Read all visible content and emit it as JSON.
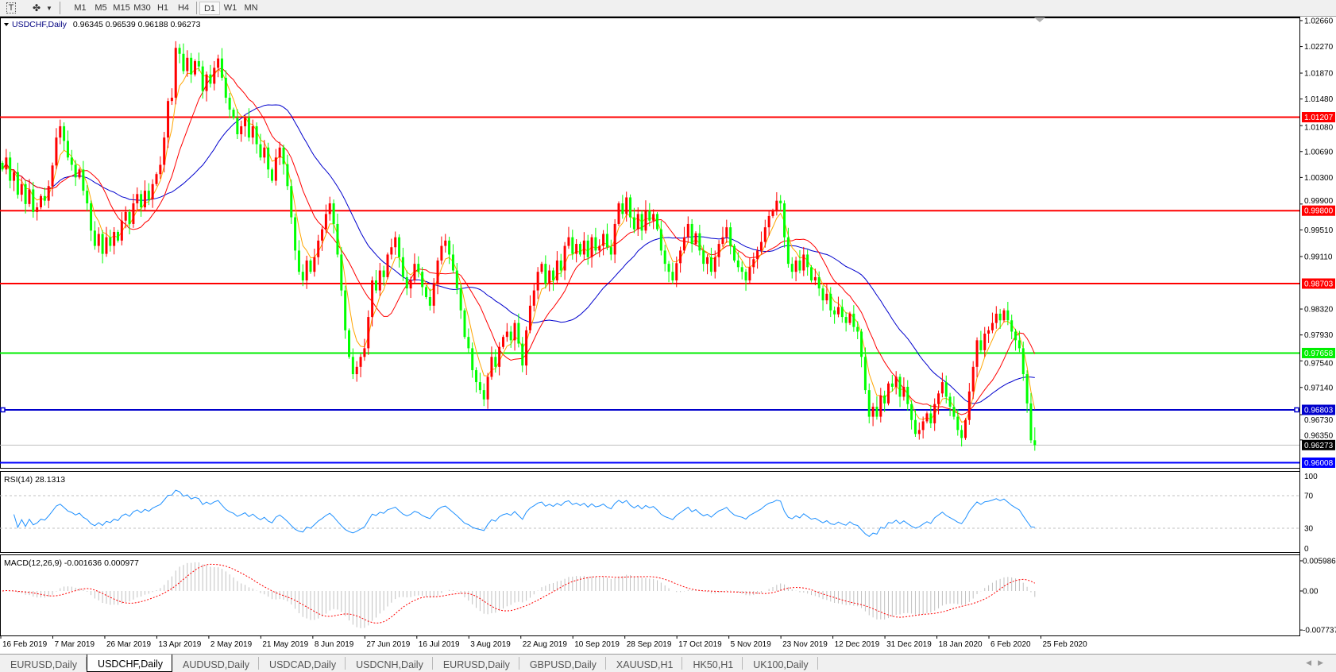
{
  "toolbar": {
    "icons": [
      "text-tool-icon",
      "shapes-tool-icon"
    ],
    "timeframes": [
      "M1",
      "M5",
      "M15",
      "M30",
      "H1",
      "H4",
      "D1",
      "W1",
      "MN"
    ],
    "active_timeframe": "D1"
  },
  "chart": {
    "title": "USDCHF,Daily",
    "ohlc": "0.96345 0.96539 0.96188 0.96273"
  },
  "chart_data": {
    "type": "candlestick",
    "symbol": "USDCHF",
    "timeframe": "Daily",
    "closes": [
      1.0042,
      1.006,
      1.0025,
      1.0038,
      1.0004,
      1.002,
      0.999,
      1.0012,
      0.9978,
      0.9985,
      1.0002,
      0.9995,
      1.0017,
      1.0048,
      1.009,
      1.0107,
      1.0085,
      1.006,
      1.0049,
      1.003,
      1.0042,
      1.001,
      0.9991,
      0.995,
      0.9927,
      0.9945,
      0.9915,
      0.994,
      0.9927,
      0.9948,
      0.9935,
      0.9965,
      0.9978,
      0.996,
      0.9991,
      1.0005,
      0.9985,
      1.001,
      0.9997,
      1.002,
      1.0035,
      1.0049,
      1.009,
      1.0145,
      1.015,
      1.0225,
      1.0216,
      1.019,
      1.021,
      1.0185,
      1.0205,
      1.0197,
      1.016,
      1.0185,
      1.0171,
      1.0195,
      1.0209,
      1.018,
      1.015,
      1.0132,
      1.012,
      1.0095,
      1.0107,
      1.012,
      1.009,
      1.0107,
      1.008,
      1.006,
      1.0075,
      1.0042,
      1.0025,
      1.006,
      1.0075,
      1.005,
      1.0017,
      0.997,
      0.992,
      0.9888,
      0.9875,
      0.9905,
      0.9888,
      0.991,
      0.9935,
      0.9952,
      0.9975,
      0.9991,
      0.996,
      0.9914,
      0.986,
      0.98,
      0.976,
      0.9734,
      0.9745,
      0.976,
      0.9773,
      0.982,
      0.9875,
      0.986,
      0.989,
      0.988,
      0.9914,
      0.9925,
      0.994,
      0.991,
      0.988,
      0.9863,
      0.9875,
      0.99,
      0.9888,
      0.9865,
      0.985,
      0.9837,
      0.987,
      0.9905,
      0.9927,
      0.9935,
      0.9914,
      0.989,
      0.9863,
      0.983,
      0.979,
      0.9773,
      0.974,
      0.9722,
      0.971,
      0.9696,
      0.973,
      0.976,
      0.9745,
      0.9775,
      0.979,
      0.9798,
      0.9785,
      0.9811,
      0.978,
      0.9747,
      0.98,
      0.9837,
      0.986,
      0.9888,
      0.99,
      0.987,
      0.989,
      0.9875,
      0.9905,
      0.989,
      0.9927,
      0.994,
      0.9915,
      0.993,
      0.9914,
      0.9935,
      0.991,
      0.994,
      0.992,
      0.9927,
      0.9945,
      0.9925,
      0.9914,
      0.996,
      0.9991,
      0.9975,
      1.0,
      0.997,
      0.9952,
      0.9975,
      0.995,
      0.998,
      0.9965,
      0.9975,
      0.9952,
      0.992,
      0.99,
      0.9888,
      0.9875,
      0.9901,
      0.992,
      0.994,
      0.996,
      0.993,
      0.9946,
      0.992,
      0.99,
      0.991,
      0.9888,
      0.991,
      0.993,
      0.994,
      0.9955,
      0.9927,
      0.9905,
      0.9895,
      0.9888,
      0.9875,
      0.9895,
      0.9907,
      0.992,
      0.9933,
      0.9955,
      0.9972,
      0.998,
      0.9995,
      0.9991,
      0.994,
      0.99,
      0.9888,
      0.9905,
      0.989,
      0.9914,
      0.9895,
      0.9875,
      0.988,
      0.9863,
      0.9845,
      0.9855,
      0.983,
      0.9824,
      0.9835,
      0.982,
      0.9811,
      0.9825,
      0.9805,
      0.9798,
      0.976,
      0.971,
      0.967,
      0.9685,
      0.967,
      0.9702,
      0.969,
      0.972,
      0.9715,
      0.973,
      0.97,
      0.9715,
      0.9689,
      0.9665,
      0.9644,
      0.965,
      0.9663,
      0.9675,
      0.966,
      0.9689,
      0.9705,
      0.9722,
      0.97,
      0.9685,
      0.967,
      0.965,
      0.9638,
      0.9665,
      0.9708,
      0.9745,
      0.9785,
      0.977,
      0.9795,
      0.98,
      0.9811,
      0.9825,
      0.9815,
      0.983,
      0.9815,
      0.9798,
      0.9785,
      0.9773,
      0.9734,
      0.969,
      0.96345,
      0.96273
    ],
    "last_bar": {
      "open": 0.96345,
      "high": 0.96539,
      "low": 0.96188,
      "close": 0.96273
    },
    "price_ticks": [
      "1.02660",
      "1.02270",
      "1.01870",
      "1.01480",
      "1.01080",
      "1.00690",
      "1.00300",
      "0.99900",
      "0.99510",
      "0.99110",
      "0.98320",
      "0.97930",
      "0.97540",
      "0.97140",
      "0.96730",
      "0.96350"
    ],
    "date_labels": [
      "16 Feb 2019",
      "7 Mar 2019",
      "26 Mar 2019",
      "13 Apr 2019",
      "2 May 2019",
      "21 May 2019",
      "8 Jun 2019",
      "27 Jun 2019",
      "16 Jul 2019",
      "3 Aug 2019",
      "22 Aug 2019",
      "10 Sep 2019",
      "28 Sep 2019",
      "17 Oct 2019",
      "5 Nov 2019",
      "23 Nov 2019",
      "12 Dec 2019",
      "31 Dec 2019",
      "18 Jan 2020",
      "6 Feb 2020",
      "25 Feb 2020"
    ],
    "horizontal_lines": [
      {
        "label": "1.01207",
        "price": 1.01207,
        "color": "#ff0000"
      },
      {
        "label": "0.99800",
        "price": 0.998,
        "color": "#ff0000"
      },
      {
        "label": "0.98703",
        "price": 0.98703,
        "color": "#ff0000"
      },
      {
        "label": "0.97658",
        "price": 0.97658,
        "color": "#00ee00"
      },
      {
        "label": "0.96803",
        "price": 0.96803,
        "color": "#0000cc"
      },
      {
        "label": "0.96008",
        "price": 0.96008,
        "color": "#0000ff"
      }
    ],
    "current_price": {
      "label": "0.96273",
      "price": 0.96273
    },
    "colors": {
      "bull": "#ff0000",
      "bear": "#00ff00",
      "ma_fast": "#ffa500",
      "ma_mid": "#ff0000",
      "ma_slow": "#0000cd",
      "rsi": "#1e90ff",
      "macd_hist": "#c0c0c0",
      "macd_signal": "#ff0000"
    },
    "indicators": {
      "rsi": {
        "label": "RSI(14) 28.1313",
        "levels": [
          70,
          30
        ],
        "ticks": [
          "100",
          "70",
          "30",
          "0"
        ]
      },
      "macd": {
        "label": "MACD(12,26,9) -0.001636 0.000977",
        "ticks": [
          {
            "label": "0.005986",
            "value": 0.005986
          },
          {
            "label": "0.00",
            "value": 0
          },
          {
            "label": "-0.007737",
            "value": -0.007737
          }
        ]
      }
    }
  },
  "tabs": [
    {
      "label": "EURUSD,Daily"
    },
    {
      "label": "USDCHF,Daily",
      "active": true
    },
    {
      "label": "AUDUSD,Daily"
    },
    {
      "label": "USDCAD,Daily"
    },
    {
      "label": "USDCNH,Daily"
    },
    {
      "label": "EURUSD,Daily"
    },
    {
      "label": "GBPUSD,Daily"
    },
    {
      "label": "XAUUSD,H1"
    },
    {
      "label": "HK50,H1"
    },
    {
      "label": "UK100,Daily"
    }
  ]
}
